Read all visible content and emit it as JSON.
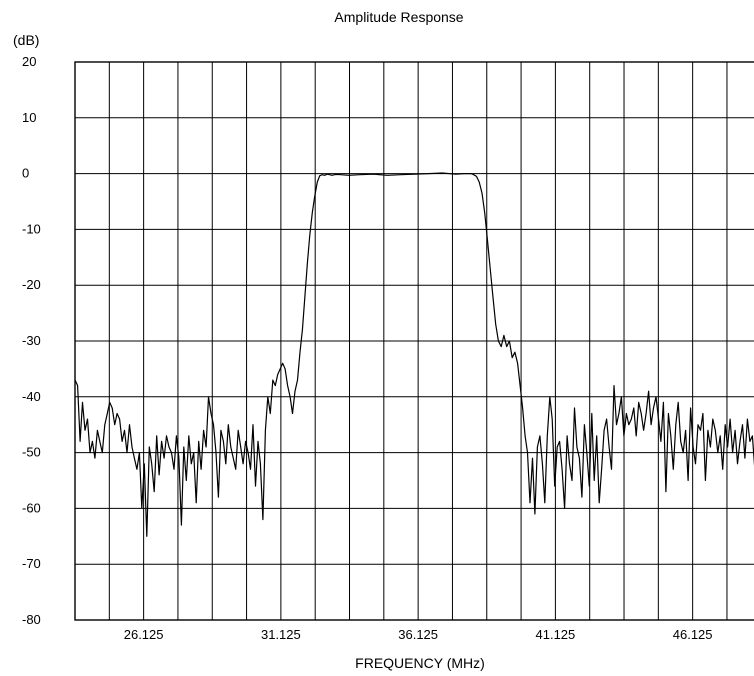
{
  "chart_data": {
    "type": "line",
    "title": "Amplitude Response",
    "ylabel": "(dB)",
    "xlabel": "FREQUENCY (MHz)",
    "xlim": [
      23.625,
      49.125
    ],
    "ylim": [
      -80,
      20
    ],
    "grid": true,
    "x_ticks": [
      26.125,
      31.125,
      36.125,
      41.125,
      46.125
    ],
    "x_tick_labels": [
      "26.125",
      "31.125",
      "36.125",
      "41.125",
      "46.125"
    ],
    "y_ticks": [
      20,
      10,
      0,
      -10,
      -20,
      -30,
      -40,
      -50,
      -60,
      -70,
      -80
    ],
    "y_tick_labels": [
      "20",
      "10",
      "0",
      "-10",
      "-20",
      "-30",
      "-40",
      "-50",
      "-60",
      "-70",
      "-80"
    ],
    "series": [
      {
        "color": "#000000",
        "x": [
          23.63,
          23.72,
          23.81,
          23.9,
          23.99,
          24.08,
          24.17,
          24.26,
          24.35,
          24.44,
          24.53,
          24.62,
          24.71,
          24.8,
          24.89,
          24.98,
          25.07,
          25.16,
          25.25,
          25.34,
          25.43,
          25.52,
          25.61,
          25.7,
          25.79,
          25.88,
          25.97,
          26.06,
          26.15,
          26.24,
          26.33,
          26.42,
          26.51,
          26.6,
          26.69,
          26.78,
          26.87,
          26.96,
          27.05,
          27.14,
          27.23,
          27.32,
          27.41,
          27.5,
          27.59,
          27.68,
          27.77,
          27.86,
          27.95,
          28.04,
          28.13,
          28.22,
          28.31,
          28.4,
          28.49,
          28.58,
          28.67,
          28.76,
          28.85,
          28.94,
          29.03,
          29.12,
          29.21,
          29.3,
          29.39,
          29.48,
          29.57,
          29.66,
          29.75,
          29.84,
          29.93,
          30.02,
          30.11,
          30.2,
          30.29,
          30.38,
          30.47,
          30.56,
          30.65,
          30.74,
          30.83,
          30.92,
          31.01,
          31.1,
          31.19,
          31.28,
          31.37,
          31.46,
          31.55,
          31.64,
          31.73,
          31.82,
          31.91,
          32.0,
          32.09,
          32.18,
          32.27,
          32.36,
          32.45,
          32.54,
          32.63,
          32.72,
          32.81,
          32.9,
          32.99,
          33.08,
          33.17,
          33.3,
          33.6,
          34.0,
          34.5,
          35.0,
          35.5,
          36.0,
          36.5,
          37.0,
          37.5,
          37.8,
          37.95,
          38.05,
          38.15,
          38.25,
          38.35,
          38.45,
          38.55,
          38.65,
          38.75,
          38.85,
          38.95,
          39.05,
          39.15,
          39.25,
          39.35,
          39.45,
          39.55,
          39.65,
          39.75,
          39.84,
          39.93,
          40.02,
          40.11,
          40.2,
          40.29,
          40.38,
          40.47,
          40.56,
          40.65,
          40.74,
          40.83,
          40.92,
          41.01,
          41.1,
          41.19,
          41.28,
          41.37,
          41.46,
          41.55,
          41.64,
          41.73,
          41.82,
          41.91,
          42.0,
          42.09,
          42.18,
          42.27,
          42.36,
          42.45,
          42.54,
          42.63,
          42.72,
          42.81,
          42.9,
          42.99,
          43.08,
          43.17,
          43.26,
          43.35,
          43.44,
          43.53,
          43.62,
          43.71,
          43.8,
          43.89,
          43.98,
          44.07,
          44.16,
          44.25,
          44.34,
          44.43,
          44.52,
          44.61,
          44.7,
          44.79,
          44.88,
          44.97,
          45.06,
          45.15,
          45.24,
          45.33,
          45.42,
          45.51,
          45.6,
          45.69,
          45.78,
          45.87,
          45.96,
          46.05,
          46.14,
          46.23,
          46.32,
          46.41,
          46.5,
          46.59,
          46.68,
          46.77,
          46.86,
          46.95,
          47.04,
          47.13,
          47.22,
          47.31,
          47.4,
          47.49,
          47.58,
          47.67,
          47.76,
          47.85,
          47.94,
          48.03,
          48.12,
          48.21,
          48.3,
          48.39,
          48.48,
          48.57,
          48.66,
          48.75,
          48.84,
          48.93,
          49.02,
          49.11
        ],
        "y": [
          -37,
          -38,
          -48,
          -41,
          -46,
          -44,
          -50,
          -48,
          -51,
          -46,
          -48,
          -50,
          -45,
          -43,
          -41,
          -42,
          -45,
          -43,
          -44,
          -48,
          -46,
          -50,
          -45,
          -49,
          -51,
          -53,
          -50,
          -60,
          -52,
          -65,
          -49,
          -52,
          -57,
          -47,
          -54,
          -48,
          -51,
          -47,
          -49,
          -50,
          -53,
          -47,
          -51,
          -63,
          -49,
          -55,
          -47,
          -52,
          -50,
          -59,
          -48,
          -53,
          -46,
          -49,
          -40,
          -43,
          -45,
          -50,
          -58,
          -46,
          -48,
          -52,
          -45,
          -49,
          -51,
          -53,
          -46,
          -49,
          -52,
          -48,
          -50,
          -53,
          -45,
          -56,
          -48,
          -52,
          -62,
          -46,
          -40,
          -43,
          -37,
          -38,
          -36,
          -35,
          -34,
          -35,
          -38,
          -40,
          -43,
          -39,
          -37,
          -32,
          -28,
          -22,
          -16,
          -11,
          -7,
          -4,
          -1.5,
          -0.4,
          -0.2,
          -0.3,
          -0.1,
          -0.2,
          -0.3,
          -0.2,
          -0.15,
          -0.2,
          -0.3,
          -0.2,
          -0.1,
          -0.3,
          -0.2,
          -0.1,
          0,
          0.1,
          -0.1,
          0,
          0,
          0,
          -0.2,
          -0.5,
          -1.5,
          -3.5,
          -7,
          -12,
          -17,
          -22,
          -27,
          -30,
          -31,
          -29,
          -31,
          -30,
          -33,
          -32,
          -34,
          -38,
          -42,
          -47,
          -50,
          -59,
          -51,
          -61,
          -49,
          -47,
          -52,
          -59,
          -47,
          -40,
          -44,
          -56,
          -49,
          -48,
          -53,
          -60,
          -47,
          -52,
          -55,
          -42,
          -49,
          -51,
          -58,
          -45,
          -50,
          -56,
          -43,
          -55,
          -47,
          -59,
          -53,
          -46,
          -44,
          -49,
          -53,
          -38,
          -45,
          -43,
          -40,
          -47,
          -43,
          -45,
          -44,
          -42,
          -47,
          -41,
          -43,
          -46,
          -43,
          -39,
          -45,
          -42,
          -40,
          -44,
          -48,
          -41,
          -57,
          -43,
          -47,
          -53,
          -45,
          -41,
          -48,
          -50,
          -46,
          -55,
          -42,
          -49,
          -52,
          -45,
          -46,
          -43,
          -55,
          -46,
          -49,
          -44,
          -46,
          -50,
          -47,
          -53,
          -45,
          -49,
          -44,
          -50,
          -46,
          -52,
          -48,
          -45,
          -51,
          -44,
          -48,
          -47,
          -53,
          -46,
          -50,
          -48,
          -45,
          -53,
          -47,
          -50,
          -49
        ]
      }
    ]
  }
}
